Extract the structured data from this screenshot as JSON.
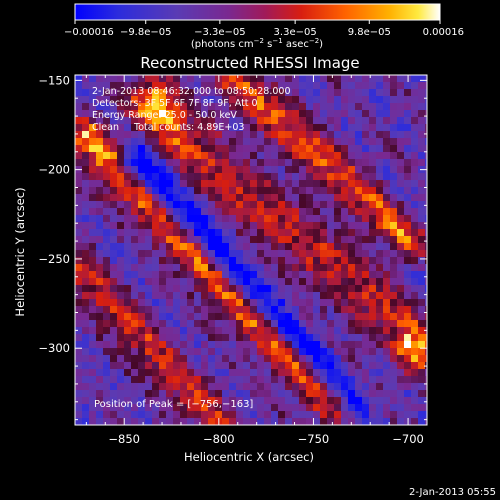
{
  "chart_data": {
    "type": "heatmap",
    "title": "Reconstructed RHESSI Image",
    "xlabel": "Heliocentric X (arcsec)",
    "ylabel": "Heliocentric Y (arcsec)",
    "xlim": [
      -876,
      -690
    ],
    "ylim": [
      -343,
      -147
    ],
    "x_ticks": [
      -850,
      -800,
      -750,
      -700
    ],
    "x_tick_labels": [
      "−850",
      "−800",
      "−750",
      "−700"
    ],
    "y_ticks": [
      -150,
      -200,
      -250,
      -300
    ],
    "y_tick_labels": [
      "−150",
      "−200",
      "−250",
      "−300"
    ],
    "colorbar": {
      "min": -0.00016,
      "max": 0.00016,
      "ticks": [
        -0.00016,
        -9.8e-05,
        -3.3e-05,
        3.3e-05,
        9.8e-05,
        0.00016
      ],
      "tick_labels": [
        "−0.00016",
        "−9.8e−05",
        "−3.3e−05",
        "3.3e−05",
        "9.8e−05",
        "0.00016"
      ],
      "units_prefix": "(photons cm",
      "units_exp1": "−2",
      "units_mid": " s",
      "units_exp2": "−1",
      "units_mid2": " asec",
      "units_exp3": "−2",
      "units_suffix": ")",
      "palette": [
        "#0000ff",
        "#3b2bd4",
        "#6a3ca8",
        "#8a2a8a",
        "#b21040",
        "#e02010",
        "#ff5a00",
        "#ff9a00",
        "#ffd000",
        "#ffffff"
      ]
    },
    "info_lines": [
      "2-Jan-2013 08:46:32.000 to 08:50:28.000",
      "Detectors: 3F 5F 6F 7F 8F 9F, Att 0",
      "Energy Range: 25.0 - 50.0 keV",
      "Clean     Total counts: 4.89E+03"
    ],
    "peak_label": "Position of Peak = [−756,−163]",
    "peak": {
      "x": -756,
      "y": -163
    },
    "grid": false,
    "bands": [
      {
        "x0": -835,
        "y0": -162,
        "x1": -695,
        "y1": -300,
        "sigma": 9,
        "amp": 1.0
      },
      {
        "x0": -870,
        "y0": -182,
        "x1": -740,
        "y1": -330,
        "sigma": 8,
        "amp": 0.85
      },
      {
        "x0": -790,
        "y0": -150,
        "x1": -700,
        "y1": -240,
        "sigma": 7,
        "amp": 0.75
      },
      {
        "x0": -875,
        "y0": -255,
        "x1": -800,
        "y1": -343,
        "sigma": 7,
        "amp": 0.6
      },
      {
        "x0": -845,
        "y0": -195,
        "x1": -730,
        "y1": -330,
        "sigma": 6,
        "amp": -0.85
      },
      {
        "x0": -815,
        "y0": -175,
        "x1": -710,
        "y1": -290,
        "sigma": 5,
        "amp": -0.6
      }
    ]
  },
  "footer": {
    "timestamp": "2-Jan-2013 05:55"
  }
}
